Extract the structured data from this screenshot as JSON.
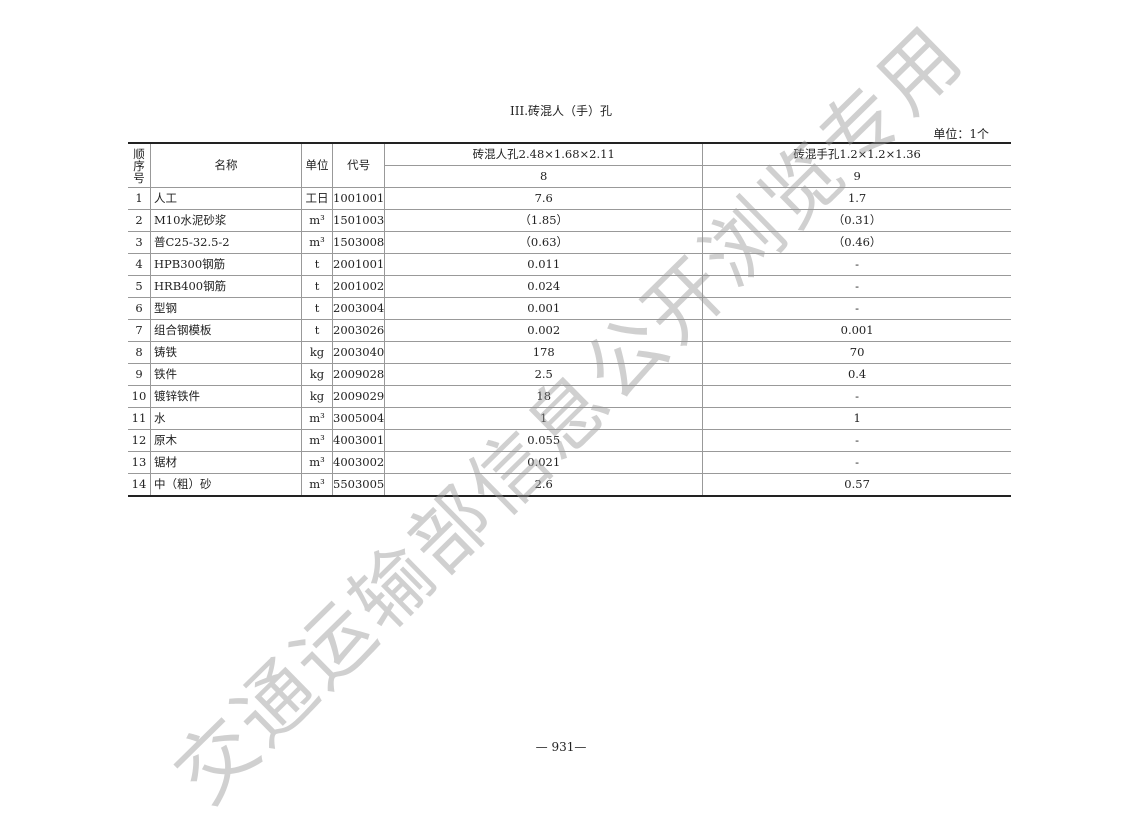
{
  "title": "III.砖混人（手）孔",
  "unit_note": "单位：1个",
  "header": {
    "seq": "顺序号",
    "name": "名称",
    "unit": "单位",
    "code": "代号",
    "col8_title": "砖混人孔2.48×1.68×2.11",
    "col8_no": "8",
    "col9_title": "砖混手孔1.2×1.2×1.36",
    "col9_no": "9"
  },
  "rows": [
    {
      "seq": "1",
      "name": "人工",
      "unit": "工日",
      "code": "1001001",
      "v8": "7.6",
      "v9": "1.7"
    },
    {
      "seq": "2",
      "name": "M10水泥砂浆",
      "unit": "m³",
      "code": "1501003",
      "v8": "（1.85）",
      "v9": "（0.31）"
    },
    {
      "seq": "3",
      "name": "普C25-32.5-2",
      "unit": "m³",
      "code": "1503008",
      "v8": "（0.63）",
      "v9": "（0.46）"
    },
    {
      "seq": "4",
      "name": "HPB300钢筋",
      "unit": "t",
      "code": "2001001",
      "v8": "0.011",
      "v9": "-"
    },
    {
      "seq": "5",
      "name": "HRB400钢筋",
      "unit": "t",
      "code": "2001002",
      "v8": "0.024",
      "v9": "-"
    },
    {
      "seq": "6",
      "name": "型钢",
      "unit": "t",
      "code": "2003004",
      "v8": "0.001",
      "v9": "-"
    },
    {
      "seq": "7",
      "name": "组合钢模板",
      "unit": "t",
      "code": "2003026",
      "v8": "0.002",
      "v9": "0.001"
    },
    {
      "seq": "8",
      "name": "铸铁",
      "unit": "kg",
      "code": "2003040",
      "v8": "178",
      "v9": "70"
    },
    {
      "seq": "9",
      "name": "铁件",
      "unit": "kg",
      "code": "2009028",
      "v8": "2.5",
      "v9": "0.4"
    },
    {
      "seq": "10",
      "name": "镀锌铁件",
      "unit": "kg",
      "code": "2009029",
      "v8": "18",
      "v9": "-"
    },
    {
      "seq": "11",
      "name": "水",
      "unit": "m³",
      "code": "3005004",
      "v8": "1",
      "v9": "1"
    },
    {
      "seq": "12",
      "name": "原木",
      "unit": "m³",
      "code": "4003001",
      "v8": "0.055",
      "v9": "-"
    },
    {
      "seq": "13",
      "name": "锯材",
      "unit": "m³",
      "code": "4003002",
      "v8": "0.021",
      "v9": "-"
    },
    {
      "seq": "14",
      "name": "中（粗）砂",
      "unit": "m³",
      "code": "5503005",
      "v8": "2.6",
      "v9": "0.57"
    }
  ],
  "page_number": "— 931—",
  "watermark": "交通运输部信息公开浏览专用"
}
